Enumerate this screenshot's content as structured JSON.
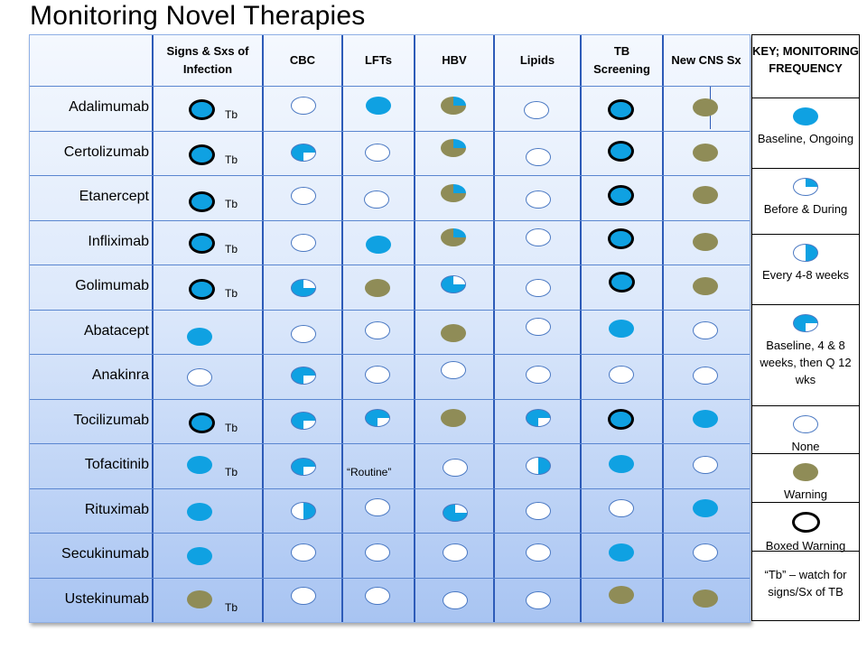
{
  "title": "Monitoring Novel Therapies",
  "columns": [
    "Signs & Sxs of Infection",
    "CBC",
    "LFTs",
    "HBV",
    "Lipids",
    "TB Screening",
    "New CNS Sx"
  ],
  "rows": [
    {
      "drug": "Adalimumab",
      "cells": [
        "boxed",
        "none",
        "blue",
        "warnq",
        "none",
        "boxed",
        "warn"
      ],
      "tb": true
    },
    {
      "drug": "Certolizumab",
      "cells": [
        "boxed",
        "baseline48",
        "none",
        "warnq",
        "none",
        "boxed",
        "warn"
      ],
      "tb": true
    },
    {
      "drug": "Etanercept",
      "cells": [
        "boxed",
        "none",
        "none",
        "warnq",
        "none",
        "boxed",
        "warn"
      ],
      "tb": true
    },
    {
      "drug": "Infliximab",
      "cells": [
        "boxed",
        "none",
        "blue",
        "warnq",
        "none",
        "boxed",
        "warn"
      ],
      "tb": true
    },
    {
      "drug": "Golimumab",
      "cells": [
        "boxed",
        "before",
        "warn",
        "before",
        "none",
        "boxed",
        "warn"
      ],
      "tb": true
    },
    {
      "drug": "Abatacept",
      "cells": [
        "blue",
        "none",
        "none",
        "warn",
        "none",
        "blue",
        "none"
      ],
      "tb": false
    },
    {
      "drug": "Anakinra",
      "cells": [
        "none",
        "baseline48",
        "none",
        "none",
        "none",
        "none",
        "none"
      ],
      "tb": false
    },
    {
      "drug": "Tocilizumab",
      "cells": [
        "boxed",
        "baseline48",
        "baseline48",
        "warn",
        "baseline48",
        "boxed",
        "blue"
      ],
      "tb": true
    },
    {
      "drug": "Tofacitinib",
      "cells": [
        "blue",
        "baseline48",
        "note",
        "none",
        "every",
        "blue",
        "none"
      ],
      "tb": true
    },
    {
      "drug": "Rituximab",
      "cells": [
        "blue",
        "every",
        "none",
        "before",
        "none",
        "none",
        "blue"
      ],
      "tb": false
    },
    {
      "drug": "Secukinumab",
      "cells": [
        "blue",
        "none",
        "none",
        "none",
        "none",
        "blue",
        "none"
      ],
      "tb": false
    },
    {
      "drug": "Ustekinumab",
      "cells": [
        "warn",
        "none",
        "none",
        "none",
        "none",
        "warn",
        "warn"
      ],
      "tb": true
    }
  ],
  "tb_label": "Tb",
  "routine_note": "“Routine”",
  "key": {
    "heading": "KEY; MONITORING FREQUENCY",
    "items": [
      {
        "symbol": "blue",
        "label": "Baseline, Ongoing"
      },
      {
        "symbol": "before",
        "label": "Before & During"
      },
      {
        "symbol": "every",
        "label": "Every 4-8 weeks"
      },
      {
        "symbol": "baseline48",
        "label": "Baseline, 4 & 8 weeks, then Q 12 wks"
      },
      {
        "symbol": "none",
        "label": "None"
      },
      {
        "symbol": "warn",
        "label": "Warning"
      },
      {
        "symbol": "boxed",
        "label": "Boxed Warning"
      },
      {
        "symbol": "text",
        "label": "“Tb” – watch for signs/Sx of TB"
      }
    ]
  },
  "colors": {
    "blue": "#0fa1e2",
    "warning": "#8f8c57",
    "border": "#2d5bb8"
  }
}
